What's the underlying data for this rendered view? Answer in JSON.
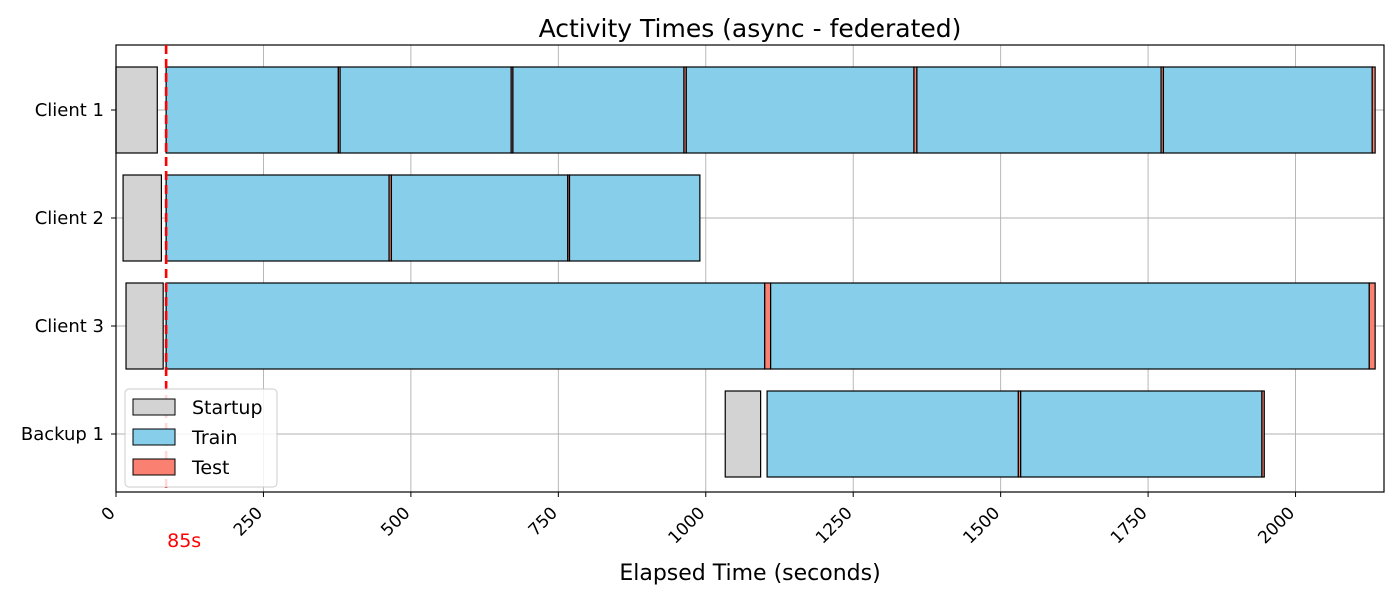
{
  "chart_data": {
    "type": "gantt",
    "title": "Activity Times (async - federated)",
    "xlabel": "Elapsed Time (seconds)",
    "ylabel": "",
    "xlim": [
      0,
      2150
    ],
    "x_ticks": [
      0,
      250,
      500,
      750,
      1000,
      1250,
      1500,
      1750,
      2000
    ],
    "x_tick_labels": [
      "0",
      "250",
      "500",
      "750",
      "1000",
      "1250",
      "1500",
      "1750",
      "2000"
    ],
    "grid": true,
    "categories": [
      "Client 1",
      "Client 2",
      "Client 3",
      "Backup 1"
    ],
    "legend": {
      "placement": "lower-left",
      "entries": [
        {
          "name": "Startup",
          "color": "#d3d3d3"
        },
        {
          "name": "Train",
          "color": "#87ceeb"
        },
        {
          "name": "Test",
          "color": "#fa8072"
        }
      ]
    },
    "marker": {
      "x": 85,
      "label": "85s",
      "color": "#ff0000"
    },
    "activities": [
      {
        "row": "Client 1",
        "type": "Startup",
        "start": 0,
        "end": 70
      },
      {
        "row": "Client 1",
        "type": "Train",
        "start": 85,
        "end": 377
      },
      {
        "row": "Client 1",
        "type": "Test",
        "start": 377,
        "end": 380
      },
      {
        "row": "Client 1",
        "type": "Train",
        "start": 380,
        "end": 670
      },
      {
        "row": "Client 1",
        "type": "Test",
        "start": 670,
        "end": 673
      },
      {
        "row": "Client 1",
        "type": "Train",
        "start": 673,
        "end": 963
      },
      {
        "row": "Client 1",
        "type": "Test",
        "start": 963,
        "end": 967
      },
      {
        "row": "Client 1",
        "type": "Train",
        "start": 967,
        "end": 1353
      },
      {
        "row": "Client 1",
        "type": "Test",
        "start": 1353,
        "end": 1358
      },
      {
        "row": "Client 1",
        "type": "Train",
        "start": 1358,
        "end": 1772
      },
      {
        "row": "Client 1",
        "type": "Test",
        "start": 1772,
        "end": 1776
      },
      {
        "row": "Client 1",
        "type": "Train",
        "start": 1776,
        "end": 2130
      },
      {
        "row": "Client 1",
        "type": "Test",
        "start": 2130,
        "end": 2135
      },
      {
        "row": "Client 2",
        "type": "Startup",
        "start": 12,
        "end": 77
      },
      {
        "row": "Client 2",
        "type": "Train",
        "start": 85,
        "end": 463
      },
      {
        "row": "Client 2",
        "type": "Test",
        "start": 463,
        "end": 467
      },
      {
        "row": "Client 2",
        "type": "Train",
        "start": 467,
        "end": 766
      },
      {
        "row": "Client 2",
        "type": "Test",
        "start": 766,
        "end": 769
      },
      {
        "row": "Client 2",
        "type": "Train",
        "start": 769,
        "end": 990
      },
      {
        "row": "Client 3",
        "type": "Startup",
        "start": 17,
        "end": 80
      },
      {
        "row": "Client 3",
        "type": "Train",
        "start": 85,
        "end": 1100
      },
      {
        "row": "Client 3",
        "type": "Test",
        "start": 1100,
        "end": 1110
      },
      {
        "row": "Client 3",
        "type": "Train",
        "start": 1110,
        "end": 2125
      },
      {
        "row": "Client 3",
        "type": "Test",
        "start": 2125,
        "end": 2135
      },
      {
        "row": "Backup 1",
        "type": "Startup",
        "start": 1033,
        "end": 1093
      },
      {
        "row": "Backup 1",
        "type": "Train",
        "start": 1104,
        "end": 1530
      },
      {
        "row": "Backup 1",
        "type": "Test",
        "start": 1530,
        "end": 1534
      },
      {
        "row": "Backup 1",
        "type": "Train",
        "start": 1534,
        "end": 1943
      },
      {
        "row": "Backup 1",
        "type": "Test",
        "start": 1943,
        "end": 1947
      }
    ]
  }
}
